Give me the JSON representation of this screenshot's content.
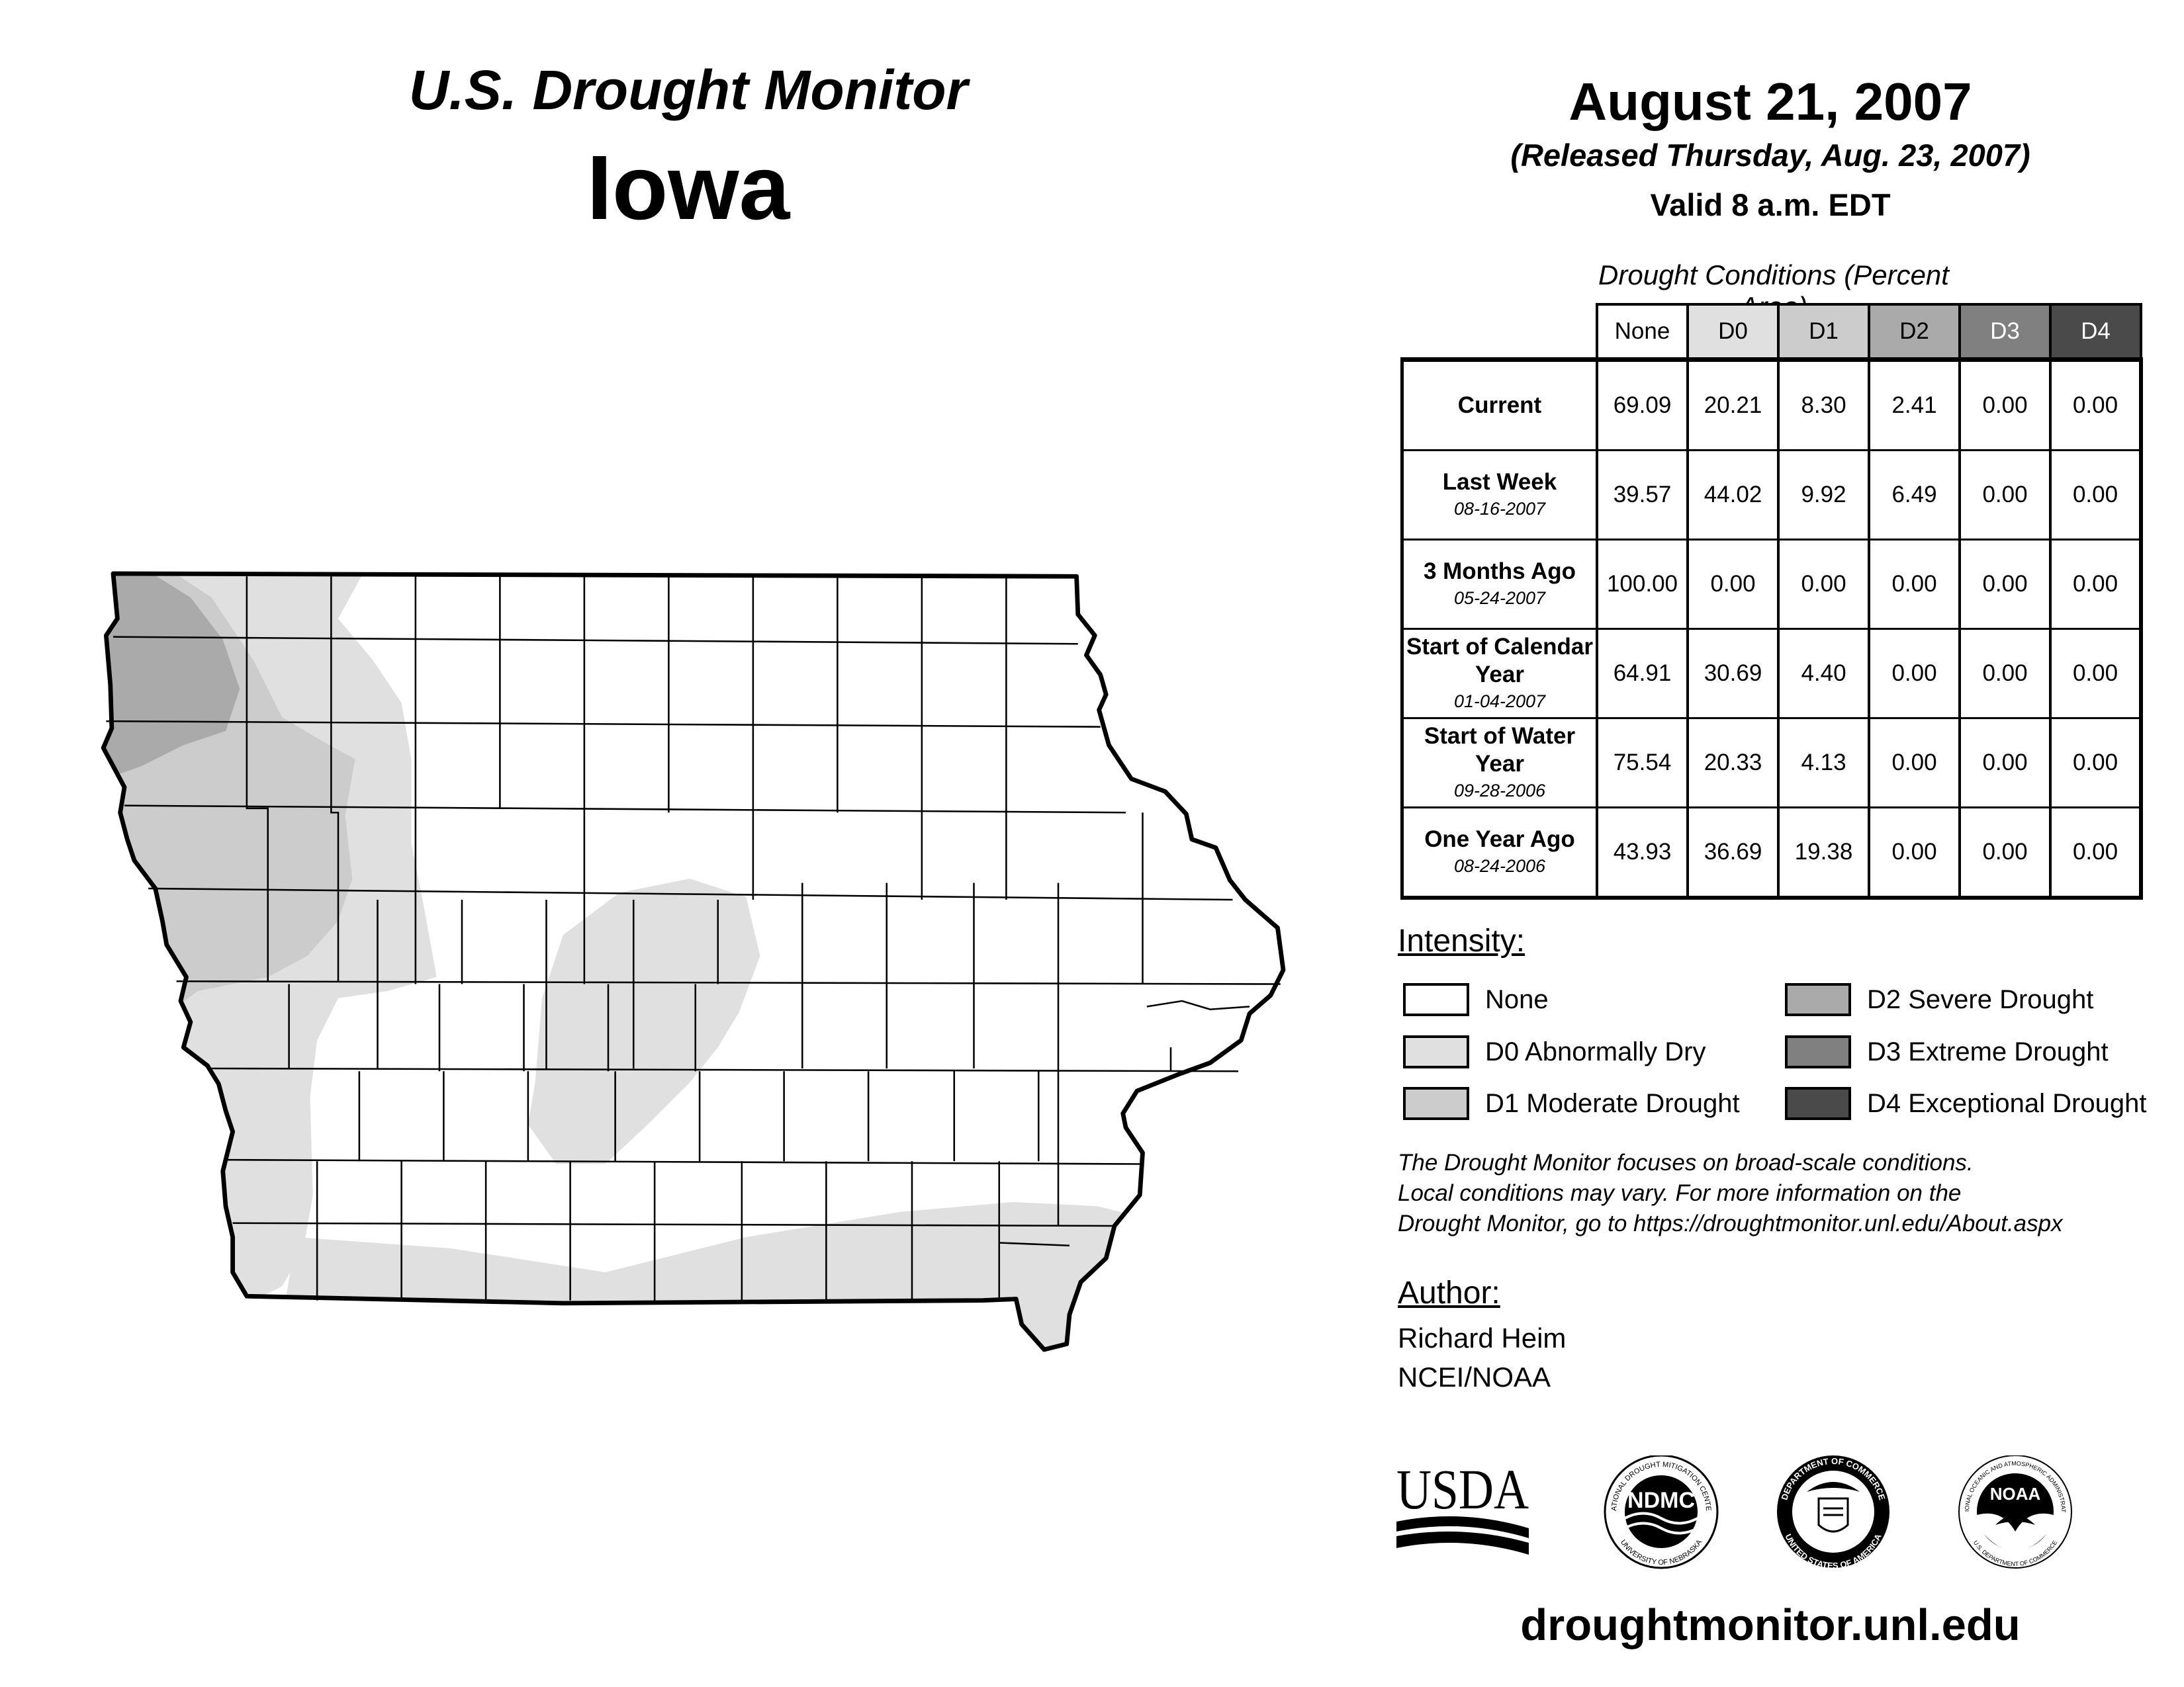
{
  "header": {
    "title_line1": "U.S. Drought Monitor",
    "title_line2": "Iowa",
    "date": "August 21, 2007",
    "release": "(Released Thursday, Aug. 23, 2007)",
    "valid": "Valid 8 a.m. EDT"
  },
  "table": {
    "caption": "Drought Conditions (Percent Area)",
    "columns": [
      "None",
      "D0",
      "D1",
      "D2",
      "D3",
      "D4"
    ],
    "column_colors": [
      "#ffffff",
      "#e0e0e0",
      "#cccccc",
      "#aaaaaa",
      "#808080",
      "#4a4a4a"
    ],
    "rows": [
      {
        "label": "Current",
        "date": "",
        "values": [
          "69.09",
          "20.21",
          "8.30",
          "2.41",
          "0.00",
          "0.00"
        ]
      },
      {
        "label": "Last Week",
        "date": "08-16-2007",
        "values": [
          "39.57",
          "44.02",
          "9.92",
          "6.49",
          "0.00",
          "0.00"
        ]
      },
      {
        "label": "3 Months Ago",
        "date": "05-24-2007",
        "values": [
          "100.00",
          "0.00",
          "0.00",
          "0.00",
          "0.00",
          "0.00"
        ]
      },
      {
        "label": "Start of Calendar Year",
        "date": "01-04-2007",
        "values": [
          "64.91",
          "30.69",
          "4.40",
          "0.00",
          "0.00",
          "0.00"
        ]
      },
      {
        "label": "Start of Water Year",
        "date": "09-28-2006",
        "values": [
          "75.54",
          "20.33",
          "4.13",
          "0.00",
          "0.00",
          "0.00"
        ]
      },
      {
        "label": "One Year Ago",
        "date": "08-24-2006",
        "values": [
          "43.93",
          "36.69",
          "19.38",
          "0.00",
          "0.00",
          "0.00"
        ]
      }
    ]
  },
  "legend": {
    "title": "Intensity:",
    "items": [
      {
        "label": "None",
        "color": "#ffffff"
      },
      {
        "label": "D0 Abnormally Dry",
        "color": "#e0e0e0"
      },
      {
        "label": "D1 Moderate Drought",
        "color": "#cccccc"
      },
      {
        "label": "D2 Severe Drought",
        "color": "#aaaaaa"
      },
      {
        "label": "D3 Extreme Drought",
        "color": "#808080"
      },
      {
        "label": "D4 Exceptional Drought",
        "color": "#4a4a4a"
      }
    ]
  },
  "note": {
    "line1": "The Drought Monitor focuses on broad-scale conditions.",
    "line2": "Local conditions may vary. For more information on the",
    "line3": "Drought Monitor, go to https://droughtmonitor.unl.edu/About.aspx"
  },
  "author": {
    "title": "Author:",
    "name": "Richard Heim",
    "org": "NCEI/NOAA"
  },
  "logos": {
    "usda": "USDA",
    "ndmc": "NDMC",
    "ndmc_ring_top": "NATIONAL DROUGHT MITIGATION CENTER",
    "ndmc_ring_bottom": "UNIVERSITY OF NEBRASKA",
    "commerce_ring_top": "DEPARTMENT OF COMMERCE",
    "commerce_ring_bottom": "UNITED STATES OF AMERICA",
    "noaa": "NOAA",
    "noaa_ring_top": "NATIONAL OCEANIC AND ATMOSPHERIC ADMINISTRATION",
    "noaa_ring_bottom": "U.S. DEPARTMENT OF COMMERCE"
  },
  "footer": {
    "url": "droughtmonitor.unl.edu"
  },
  "map": {
    "state": "Iowa",
    "colors": {
      "none": "#ffffff",
      "d0": "#e0e0e0",
      "d1": "#cccccc",
      "d2": "#aaaaaa"
    }
  }
}
